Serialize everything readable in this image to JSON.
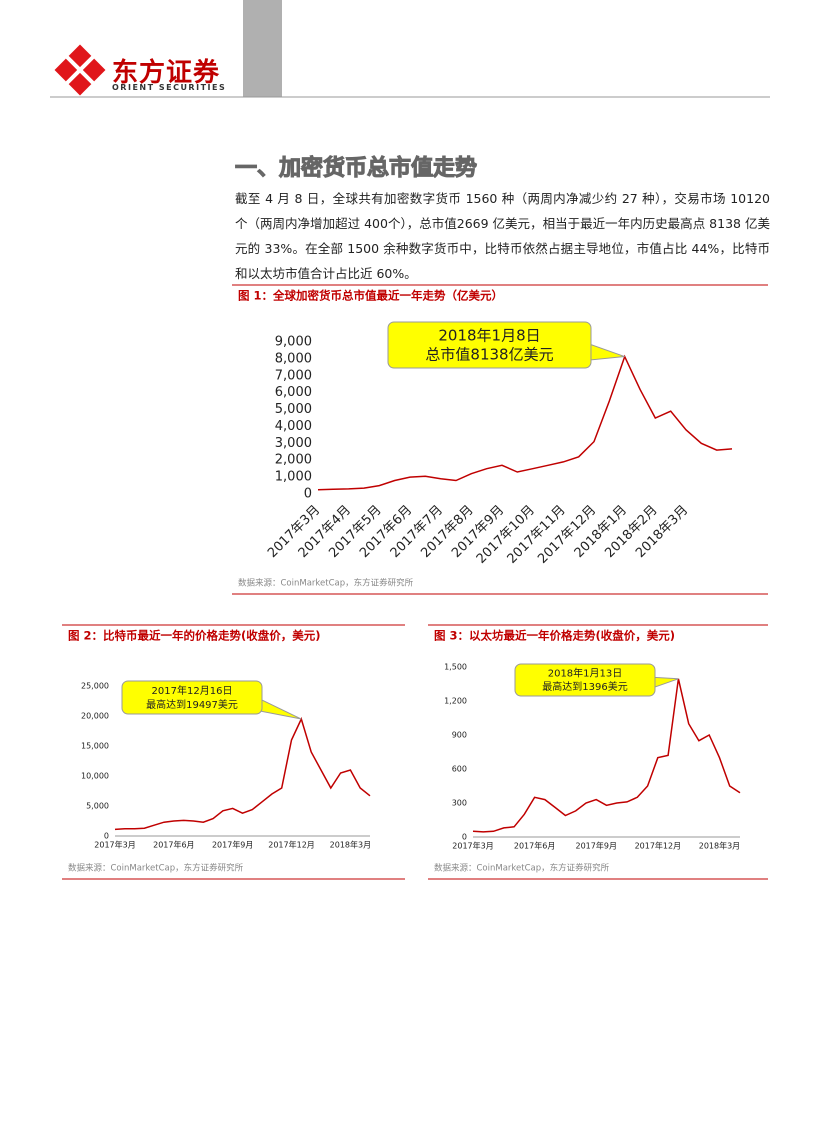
{
  "header": {
    "brand": "东方证券",
    "brand_en": "ORIENT SECURITIES"
  },
  "section_title": "一、加密货币总市值走势",
  "paragraph": "截至 4 月 8 日，全球共有加密数字货币 1560 种（两周内净减少约 27 种），交易市场 10120 个（两周内净增加超过 400个），总市值2669 亿美元，相当于最近一年内历史最高点 8138 亿美元的 33%。在全部 1500 余种数字货币中，比特币依然占据主导地位，市值占比 44%，比特币和以太坊市值合计占比近 60%。",
  "chart_data": [
    {
      "type": "line",
      "title": "图 1：全球加密货币总市值最近一年走势（亿美元）",
      "source": "数据来源：CoinMarketCap，东方证券研究所",
      "color": "#c00000",
      "annotations": [
        "2018年1月8日",
        "总市值8138亿美元"
      ],
      "categories": [
        "2017年3月",
        null,
        "2017年4月",
        null,
        "2017年5月",
        null,
        "2017年6月",
        null,
        "2017年7月",
        null,
        "2017年8月",
        null,
        "2017年9月",
        null,
        "2017年10月",
        null,
        "2017年11月",
        null,
        "2017年12月",
        null,
        "2018年1月",
        null,
        "2018年2月",
        null,
        "2018年3月",
        null,
        null,
        null
      ],
      "values": [
        250,
        280,
        300,
        350,
        500,
        800,
        1000,
        1050,
        900,
        800,
        1200,
        1500,
        1700,
        1300,
        1500,
        1700,
        1900,
        2200,
        3100,
        5500,
        8138,
        6200,
        4500,
        4900,
        3800,
        3000,
        2600,
        2669
      ],
      "ylim": [
        0,
        9000
      ],
      "yticks": [
        0,
        {
          "value": 1000,
          "label": "1,000"
        },
        {
          "value": 2000,
          "label": "2,000"
        },
        {
          "value": 3000,
          "label": "3,000"
        },
        {
          "value": 4000,
          "label": "4,000"
        },
        {
          "value": 5000,
          "label": "5,000"
        },
        {
          "value": 6000,
          "label": "6,000"
        },
        {
          "value": 7000,
          "label": "7,000"
        },
        {
          "value": 8000,
          "label": "8,000"
        },
        {
          "value": 9000,
          "label": "9,000"
        }
      ]
    },
    {
      "type": "line",
      "title": "图 2：比特币最近一年的价格走势(收盘价，美元)",
      "source": "数据来源：CoinMarketCap，东方证券研究所",
      "color": "#c00000",
      "annotations": [
        "2017年12月16日",
        "最高达到19497美元"
      ],
      "categories": [
        "2017年3月",
        null,
        null,
        null,
        null,
        null,
        "2017年6月",
        null,
        null,
        null,
        null,
        null,
        "2017年9月",
        null,
        null,
        null,
        null,
        null,
        "2017年12月",
        null,
        null,
        null,
        null,
        null,
        "2018年3月",
        null,
        null
      ],
      "values": [
        1100,
        1200,
        1200,
        1300,
        1800,
        2300,
        2500,
        2600,
        2500,
        2300,
        2900,
        4200,
        4600,
        3800,
        4400,
        5700,
        7000,
        8000,
        16000,
        19497,
        14000,
        11000,
        8000,
        10500,
        11000,
        8000,
        6700
      ],
      "ylim": [
        0,
        25000
      ],
      "yticks": [
        0,
        {
          "value": 5000,
          "label": "5,000"
        },
        {
          "value": 10000,
          "label": "10,000"
        },
        {
          "value": 15000,
          "label": "15,000"
        },
        {
          "value": 20000,
          "label": "20,000"
        },
        {
          "value": 25000,
          "label": "25,000"
        }
      ]
    },
    {
      "type": "line",
      "title": "图 3：以太坊最近一年价格走势(收盘价，美元)",
      "source": "数据来源：CoinMarketCap，东方证券研究所",
      "color": "#c00000",
      "annotations": [
        "2018年1月13日",
        "最高达到1396美元"
      ],
      "categories": [
        "2017年3月",
        null,
        null,
        null,
        null,
        null,
        "2017年6月",
        null,
        null,
        null,
        null,
        null,
        "2017年9月",
        null,
        null,
        null,
        null,
        null,
        "2017年12月",
        null,
        null,
        null,
        null,
        null,
        "2018年3月",
        null,
        null
      ],
      "values": [
        50,
        45,
        50,
        80,
        90,
        200,
        350,
        330,
        260,
        190,
        230,
        300,
        330,
        280,
        300,
        310,
        350,
        450,
        700,
        720,
        1396,
        1000,
        850,
        900,
        700,
        450,
        390
      ],
      "ylim": [
        0,
        1500
      ],
      "yticks": [
        0,
        300,
        600,
        900,
        {
          "value": 1200,
          "label": "1,200"
        },
        {
          "value": 1500,
          "label": "1,500"
        }
      ]
    }
  ]
}
